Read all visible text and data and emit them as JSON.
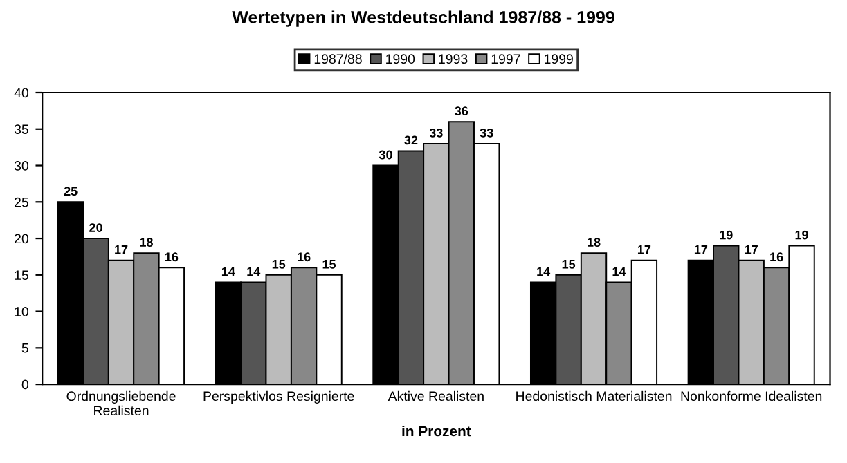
{
  "chart_data": {
    "type": "bar",
    "title": "Wertetypen in Westdeutschland 1987/88 - 1999",
    "xlabel": "in Prozent",
    "categories": [
      "Ordnungsliebende\nRealisten",
      "Perspektivlos Resignierte",
      "Aktive Realisten",
      "Hedonistisch Materialisten",
      "Nonkonforme Idealisten"
    ],
    "series": [
      {
        "name": "1987/88",
        "color": "#000000",
        "values": [
          25,
          14,
          30,
          14,
          17
        ]
      },
      {
        "name": "1990",
        "color": "#555555",
        "values": [
          20,
          14,
          32,
          15,
          19
        ]
      },
      {
        "name": "1993",
        "color": "#bbbbbb",
        "values": [
          17,
          15,
          33,
          18,
          17
        ]
      },
      {
        "name": "1997",
        "color": "#888888",
        "values": [
          18,
          16,
          36,
          14,
          16
        ]
      },
      {
        "name": "1999",
        "color": "#ffffff",
        "values": [
          16,
          15,
          33,
          17,
          19
        ]
      }
    ],
    "ylim": [
      0,
      40
    ],
    "yticks": [
      0,
      5,
      10,
      15,
      20,
      25,
      30,
      35,
      40
    ],
    "grid": false,
    "legend": "top",
    "data_labels": true
  }
}
